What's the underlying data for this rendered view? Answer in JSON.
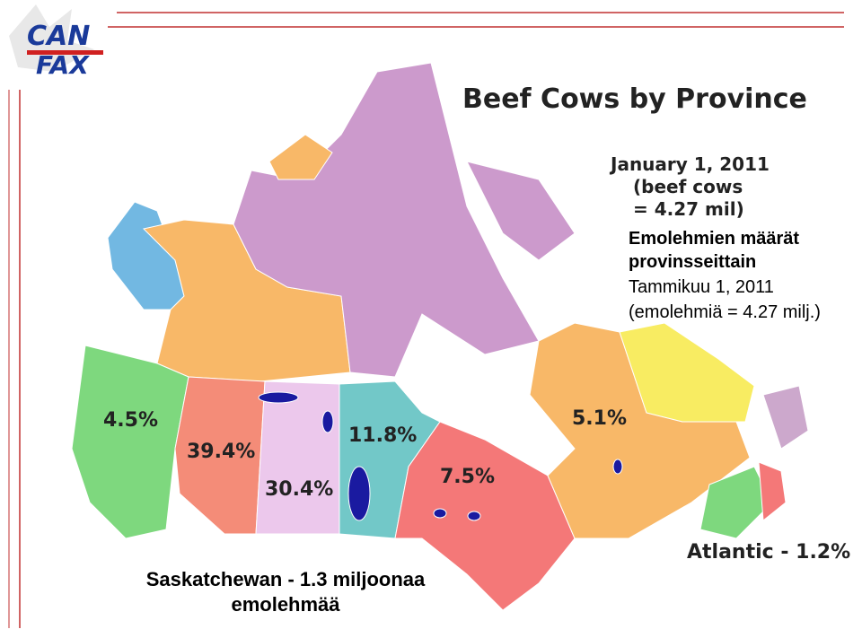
{
  "logo": {
    "line1": "CAN",
    "line2": "FAX"
  },
  "title": "Beef Cows by Province",
  "subtitle": [
    "January 1, 2011",
    "(beef cows",
    "= 4.27 mil)"
  ],
  "translation": [
    "Emolehmien määrät",
    "provinsseittain",
    "Tammikuu 1, 2011",
    "(emolehmiä = 4.27 milj.)"
  ],
  "regions": [
    {
      "label": "4.5%"
    },
    {
      "label": "39.4%"
    },
    {
      "label": "30.4%"
    },
    {
      "label": "11.8%"
    },
    {
      "label": "7.5%"
    },
    {
      "label": "5.1%"
    },
    {
      "label": "Atlantic - 1.2%"
    }
  ],
  "footer": [
    "Saskatchewan - 1.3 miljoonaa",
    "emolehmää"
  ]
}
